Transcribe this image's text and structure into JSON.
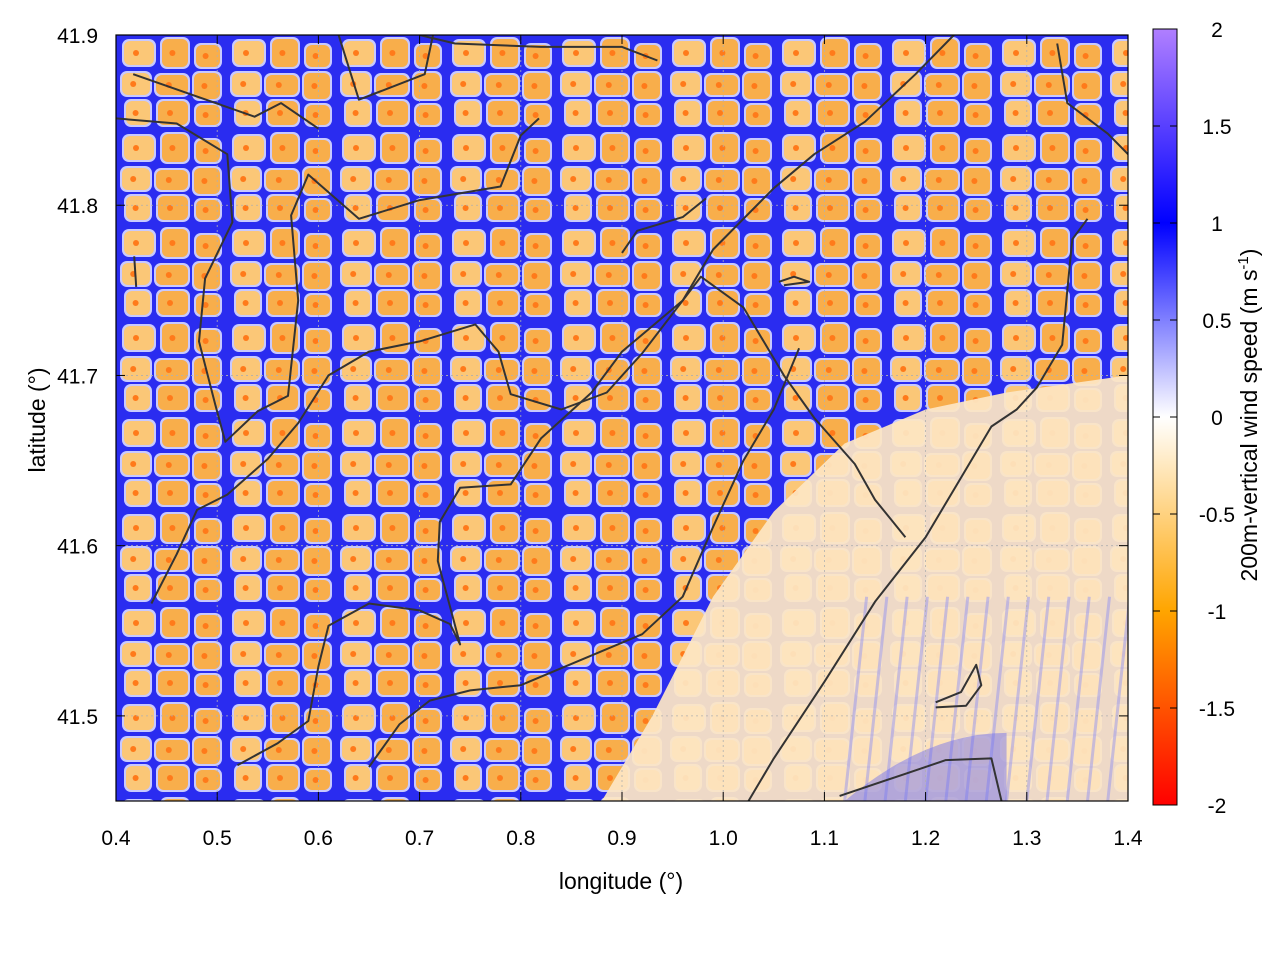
{
  "chart_data": {
    "type": "heatmap",
    "xlabel": "longitude (°)",
    "ylabel": "latitude (°)",
    "xlim": [
      0.4,
      1.4
    ],
    "ylim": [
      41.45,
      41.9
    ],
    "xticks": [
      0.4,
      0.5,
      0.6,
      0.7,
      0.8,
      0.9,
      1.0,
      1.1,
      1.2,
      1.3,
      1.4
    ],
    "xtick_labels": [
      "0.4",
      "0.5",
      "0.6",
      "0.7",
      "0.8",
      "0.9",
      "1.0",
      "1.1",
      "1.2",
      "1.3",
      "1.4"
    ],
    "yticks": [
      41.5,
      41.6,
      41.7,
      41.8,
      41.9
    ],
    "ytick_labels": [
      "41.5",
      "41.6",
      "41.7",
      "41.8",
      "41.9"
    ],
    "grid": true,
    "colorbar": {
      "title_main": "200m-vertical wind speed (m s",
      "title_sup": "-1",
      "title_end": ")",
      "range": [
        -2,
        2
      ],
      "ticks": [
        2,
        1.5,
        1,
        0.5,
        0,
        -0.5,
        -1,
        -1.5,
        -2
      ],
      "tick_labels": [
        "2",
        "1.5",
        "1",
        "0.5",
        "0",
        "-0.5",
        "-1",
        "-1.5",
        "-2"
      ],
      "colors": {
        "top": "#b07fff",
        "upper": "#0000ff",
        "mid": "#ffffff",
        "lower": "#ffa500",
        "bottom": "#ff0000"
      }
    },
    "field_description": "cellular convection pattern: blue updraft rings around orange downdraft cells; smooth weak flow in south-east (sea)",
    "coastlines": [
      [
        [
          0.417,
          41.877
        ],
        [
          0.537,
          41.852
        ],
        [
          0.563,
          41.86
        ],
        [
          0.6,
          41.845
        ]
      ],
      [
        [
          0.4,
          41.851
        ],
        [
          0.46,
          41.848
        ],
        [
          0.51,
          41.83
        ],
        [
          0.515,
          41.79
        ],
        [
          0.488,
          41.757
        ],
        [
          0.482,
          41.72
        ],
        [
          0.498,
          41.683
        ],
        [
          0.508,
          41.661
        ],
        [
          0.54,
          41.679
        ],
        [
          0.57,
          41.688
        ],
        [
          0.58,
          41.744
        ],
        [
          0.573,
          41.794
        ],
        [
          0.59,
          41.818
        ],
        [
          0.64,
          41.792
        ],
        [
          0.7,
          41.803
        ],
        [
          0.78,
          41.811
        ],
        [
          0.8,
          41.841
        ],
        [
          0.818,
          41.851
        ]
      ],
      [
        [
          0.62,
          41.9
        ],
        [
          0.64,
          41.862
        ],
        [
          0.705,
          41.877
        ],
        [
          0.715,
          41.905
        ]
      ],
      [
        [
          0.435,
          41.566
        ],
        [
          0.46,
          41.595
        ],
        [
          0.48,
          41.621
        ],
        [
          0.51,
          41.63
        ],
        [
          0.55,
          41.651
        ],
        [
          0.58,
          41.672
        ],
        [
          0.61,
          41.7
        ],
        [
          0.65,
          41.714
        ],
        [
          0.7,
          41.72
        ],
        [
          0.755,
          41.73
        ],
        [
          0.778,
          41.714
        ],
        [
          0.79,
          41.689
        ],
        [
          0.84,
          41.68
        ],
        [
          0.885,
          41.69
        ],
        [
          0.92,
          41.713
        ],
        [
          0.96,
          41.744
        ],
        [
          0.978,
          41.758
        ],
        [
          1.02,
          41.74
        ],
        [
          1.05,
          41.71
        ],
        [
          1.06,
          41.7
        ],
        [
          1.09,
          41.675
        ],
        [
          1.13,
          41.648
        ],
        [
          1.15,
          41.627
        ],
        [
          1.18,
          41.605
        ]
      ],
      [
        [
          0.9,
          41.772
        ],
        [
          0.915,
          41.785
        ],
        [
          0.96,
          41.793
        ],
        [
          0.983,
          41.804
        ]
      ],
      [
        [
          0.52,
          41.471
        ],
        [
          0.56,
          41.484
        ],
        [
          0.59,
          41.497
        ],
        [
          0.6,
          41.529
        ],
        [
          0.61,
          41.553
        ],
        [
          0.65,
          41.566
        ],
        [
          0.7,
          41.562
        ],
        [
          0.73,
          41.554
        ],
        [
          0.74,
          41.542
        ],
        [
          0.718,
          41.591
        ],
        [
          0.72,
          41.614
        ],
        [
          0.74,
          41.634
        ],
        [
          0.79,
          41.636
        ],
        [
          0.82,
          41.663
        ],
        [
          0.87,
          41.69
        ],
        [
          0.9,
          41.714
        ],
        [
          0.96,
          41.744
        ],
        [
          0.99,
          41.774
        ],
        [
          1.05,
          41.81
        ],
        [
          1.09,
          41.83
        ],
        [
          1.14,
          41.849
        ],
        [
          1.19,
          41.877
        ],
        [
          1.228,
          41.9
        ]
      ],
      [
        [
          0.65,
          41.47
        ],
        [
          0.68,
          41.495
        ],
        [
          0.71,
          41.509
        ],
        [
          0.75,
          41.515
        ],
        [
          0.8,
          41.518
        ],
        [
          0.86,
          41.533
        ],
        [
          0.92,
          41.548
        ],
        [
          0.96,
          41.57
        ],
        [
          0.99,
          41.611
        ],
        [
          1.02,
          41.65
        ],
        [
          1.05,
          41.68
        ],
        [
          1.075,
          41.716
        ]
      ],
      [
        [
          1.025,
          41.45
        ],
        [
          1.05,
          41.475
        ],
        [
          1.1,
          41.52
        ],
        [
          1.15,
          41.567
        ],
        [
          1.2,
          41.605
        ],
        [
          1.23,
          41.635
        ],
        [
          1.265,
          41.67
        ],
        [
          1.29,
          41.68
        ],
        [
          1.31,
          41.693
        ],
        [
          1.335,
          41.718
        ],
        [
          1.34,
          41.75
        ],
        [
          1.345,
          41.78
        ],
        [
          1.36,
          41.792
        ]
      ],
      [
        [
          1.21,
          41.505
        ],
        [
          1.24,
          41.506
        ],
        [
          1.255,
          41.518
        ],
        [
          1.25,
          41.53
        ],
        [
          1.235,
          41.514
        ],
        [
          1.21,
          41.508
        ]
      ],
      [
        [
          1.115,
          41.453
        ],
        [
          1.18,
          41.466
        ],
        [
          1.22,
          41.474
        ],
        [
          1.265,
          41.475
        ],
        [
          1.275,
          41.45
        ]
      ],
      [
        [
          1.33,
          41.895
        ],
        [
          1.34,
          41.86
        ],
        [
          1.38,
          41.842
        ],
        [
          1.4,
          41.83
        ]
      ],
      [
        [
          1.055,
          41.755
        ],
        [
          1.07,
          41.758
        ],
        [
          1.085,
          41.755
        ],
        [
          1.06,
          41.753
        ]
      ],
      [
        [
          0.7,
          41.9
        ],
        [
          0.735,
          41.895
        ],
        [
          0.82,
          41.893
        ],
        [
          0.9,
          41.893
        ],
        [
          0.935,
          41.885
        ]
      ],
      [
        [
          0.418,
          41.77
        ],
        [
          0.42,
          41.752
        ]
      ]
    ]
  }
}
